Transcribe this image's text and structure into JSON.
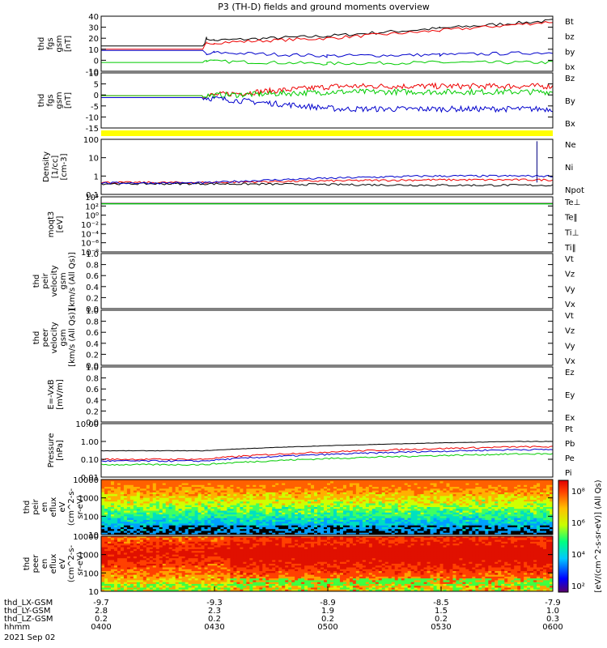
{
  "title": "P3 (TH-D) fields and ground moments overview",
  "panels": [
    {
      "id": "fgs_gsm_mag",
      "ylabel": [
        "thd",
        "fgs",
        "gsm",
        "[nT]"
      ],
      "yticks": [
        "40",
        "30",
        "20",
        "10",
        "0",
        "-10"
      ],
      "ylim": [
        -10,
        40
      ],
      "scale": "linear",
      "legend": [
        {
          "label": "Bt",
          "color": "#000000"
        },
        {
          "label": "bz",
          "color": "#ee0000"
        },
        {
          "label": "by",
          "color": "#00cc00"
        },
        {
          "label": "bx",
          "color": "#0000cc"
        }
      ]
    },
    {
      "id": "fgs_gsm_comp",
      "ylabel": [
        "thd",
        "fgs",
        "gsm",
        "[nT]"
      ],
      "yticks": [
        "10",
        "5",
        "0",
        "-5",
        "-10",
        "-15"
      ],
      "ylim": [
        -17,
        12
      ],
      "scale": "linear",
      "legend": [
        {
          "label": "Bz",
          "color": "#ee0000"
        },
        {
          "label": "By",
          "color": "#00cc00"
        },
        {
          "label": "Bx",
          "color": "#0000cc"
        }
      ]
    },
    {
      "id": "density",
      "ylabel": [
        "Density",
        "[1/cc]",
        "[cm-3]"
      ],
      "yticks": [
        "100",
        "10",
        "1",
        "0.1"
      ],
      "ylim": [
        0.05,
        200
      ],
      "scale": "log",
      "legend": [
        {
          "label": "Ne",
          "color": "#ee0000"
        },
        {
          "label": "Ni",
          "color": "#000000"
        },
        {
          "label": "Npot",
          "color": "#0000cc"
        }
      ]
    },
    {
      "id": "temperature",
      "ylabel": [
        "moqt3",
        "[eV]"
      ],
      "yticks": [
        "10⁴",
        "10²",
        "10⁰",
        "10⁻²",
        "10⁻⁴",
        "10⁻⁶",
        "10⁻⁸"
      ],
      "ylim": [
        1e-09,
        100000.0
      ],
      "scale": "log",
      "legend": [
        {
          "label": "Te⊥",
          "color": "#ee0000"
        },
        {
          "label": "Te‖",
          "color": "#000000"
        },
        {
          "label": "Ti⊥",
          "color": "#0000cc"
        },
        {
          "label": "Ti‖",
          "color": "#00cc00"
        }
      ]
    },
    {
      "id": "ion_velocity",
      "ylabel": [
        "thd",
        "peir",
        "velocity",
        "gsm",
        "[km/s (All Qs)]"
      ],
      "yticks": [
        "1.0",
        "0.8",
        "0.6",
        "0.4",
        "0.2",
        "0.0"
      ],
      "ylim": [
        0,
        1
      ],
      "scale": "linear",
      "legend": [
        {
          "label": "Vt",
          "color": "#000000"
        },
        {
          "label": "Vz",
          "color": "#ee0000"
        },
        {
          "label": "Vy",
          "color": "#00cc00"
        },
        {
          "label": "Vx",
          "color": "#0000cc"
        }
      ]
    },
    {
      "id": "electron_velocity",
      "ylabel": [
        "thd",
        "peer",
        "velocity",
        "gsm",
        "[km/s (All Qs)]"
      ],
      "yticks": [
        "1.0",
        "0.8",
        "0.6",
        "0.4",
        "0.2",
        "0.0"
      ],
      "ylim": [
        0,
        1
      ],
      "scale": "linear",
      "legend": [
        {
          "label": "Vt",
          "color": "#000000"
        },
        {
          "label": "Vz",
          "color": "#ee0000"
        },
        {
          "label": "Vy",
          "color": "#00cc00"
        },
        {
          "label": "Vx",
          "color": "#0000cc"
        }
      ]
    },
    {
      "id": "efield",
      "ylabel": [
        "E=-VxB",
        "[mV/m]"
      ],
      "yticks": [
        "1.0",
        "0.8",
        "0.6",
        "0.4",
        "0.2",
        "0.0"
      ],
      "ylim": [
        0,
        1
      ],
      "scale": "linear",
      "legend": [
        {
          "label": "Ez",
          "color": "#ee0000"
        },
        {
          "label": "Ey",
          "color": "#00cc00"
        },
        {
          "label": "Ex",
          "color": "#0000cc"
        }
      ]
    },
    {
      "id": "pressure",
      "ylabel": [
        "Pressure",
        "[nPa]"
      ],
      "yticks": [
        "10.00",
        "1.00",
        "0.10",
        "0.01"
      ],
      "ylim": [
        0.01,
        10
      ],
      "scale": "log",
      "legend": [
        {
          "label": "Pt",
          "color": "#000000"
        },
        {
          "label": "Pb",
          "color": "#ee0000"
        },
        {
          "label": "Pe",
          "color": "#00cc00"
        },
        {
          "label": "Pi",
          "color": "#0000cc"
        }
      ]
    },
    {
      "id": "peir_spec",
      "ylabel": [
        "thd",
        "peir",
        "en",
        "eflux",
        "eV",
        "(cm^2-s-",
        "sr-eV)"
      ],
      "yticks": [
        "10000",
        "1000",
        "100",
        "10"
      ],
      "scale": "log",
      "legend": []
    },
    {
      "id": "peer_spec",
      "ylabel": [
        "thd",
        "peer",
        "en",
        "eflux",
        "eV",
        "(cm^2-s-",
        "sr-eV)"
      ],
      "yticks": [
        "10000",
        "1000",
        "100",
        "10"
      ],
      "scale": "log",
      "legend": []
    }
  ],
  "colorbar": {
    "ticks": [
      "10⁸",
      "10⁶",
      "10⁴",
      "10²"
    ],
    "label": "[eV/(cm^2-s-sr-eV)] (All Qs)"
  },
  "xaxis": {
    "rows": [
      {
        "label": "thd_LX-GSM",
        "values": [
          "-9.7",
          "-9.3",
          "-8.9",
          "-8.5",
          "-7.9"
        ]
      },
      {
        "label": "thd_LY-GSM",
        "values": [
          "2.8",
          "2.3",
          "1.9",
          "1.5",
          "1.0"
        ]
      },
      {
        "label": "thd_LZ-GSM",
        "values": [
          "0.2",
          "0.2",
          "0.2",
          "0.2",
          "0.3"
        ]
      },
      {
        "label": "hhmm",
        "values": [
          "0400",
          "0430",
          "0500",
          "0530",
          "0600"
        ]
      }
    ],
    "date": "2021 Sep 02"
  },
  "chart_data": {
    "type": "line",
    "title": "P3 (TH-D) fields and ground moments overview",
    "x": [
      "0400",
      "0430",
      "0500",
      "0530",
      "0600"
    ],
    "xlabel": "hhmm",
    "series": [
      {
        "name": "Bt",
        "x": [
          "0400",
          "0427",
          "0428",
          "0430",
          "0500",
          "0530",
          "0600"
        ],
        "values": [
          13,
          13,
          20,
          18,
          22,
          29,
          36
        ]
      },
      {
        "name": "bz",
        "x": [
          "0400",
          "0427",
          "0428",
          "0430",
          "0500",
          "0530",
          "0600"
        ],
        "values": [
          10,
          10,
          15,
          16,
          20,
          27,
          35
        ]
      },
      {
        "name": "by",
        "x": [
          "0400",
          "0427",
          "0428",
          "0430",
          "0500",
          "0530",
          "0600"
        ],
        "values": [
          -2,
          -2,
          0,
          -1,
          -3,
          -2,
          -2
        ]
      },
      {
        "name": "bx",
        "x": [
          "0400",
          "0427",
          "0428",
          "0430",
          "0500",
          "0530",
          "0600"
        ],
        "values": [
          9,
          9,
          5,
          7,
          4,
          5,
          7
        ]
      }
    ]
  }
}
